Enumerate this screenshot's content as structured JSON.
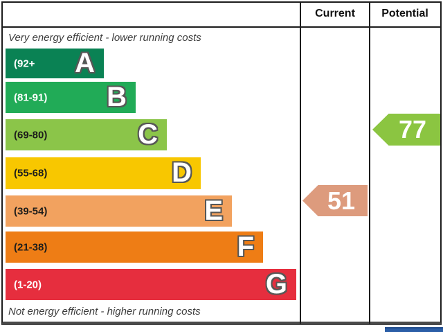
{
  "header": {
    "current_label": "Current",
    "potential_label": "Potential"
  },
  "captions": {
    "top": "Very energy efficient - lower running costs",
    "bottom": "Not energy efficient - higher running costs"
  },
  "chart_data": {
    "type": "bar",
    "title": "Energy efficiency rating chart (EPC style)",
    "orientation": "horizontal",
    "columns": [
      "Current",
      "Potential"
    ],
    "bands": [
      {
        "letter": "A",
        "range_label": "(92+",
        "range_min": 92,
        "range_max": 100,
        "color": "#0a8254",
        "label_color": "#ffffff"
      },
      {
        "letter": "B",
        "range_label": "(81-91)",
        "range_min": 81,
        "range_max": 91,
        "color": "#21ab57",
        "label_color": "#ffffff"
      },
      {
        "letter": "C",
        "range_label": "(69-80)",
        "range_min": 69,
        "range_max": 80,
        "color": "#8bc549",
        "label_color": "#1d1d1b"
      },
      {
        "letter": "D",
        "range_label": "(55-68)",
        "range_min": 55,
        "range_max": 68,
        "color": "#f8c700",
        "label_color": "#1d1d1b"
      },
      {
        "letter": "E",
        "range_label": "(39-54)",
        "range_min": 39,
        "range_max": 54,
        "color": "#f2a25f",
        "label_color": "#1d1d1b"
      },
      {
        "letter": "F",
        "range_label": "(21-38)",
        "range_min": 21,
        "range_max": 38,
        "color": "#ee7d15",
        "label_color": "#1d1d1b"
      },
      {
        "letter": "G",
        "range_label": "(1-20)",
        "range_min": 1,
        "range_max": 20,
        "color": "#e62e3e",
        "label_color": "#ffffff"
      }
    ],
    "current": {
      "value": "51",
      "band": "E",
      "arrow_color": "#dd9b7d"
    },
    "potential": {
      "value": "77",
      "band": "C",
      "arrow_color": "#8bc541"
    }
  },
  "footer": {
    "partial_blue_box_color": "#2b5ea7"
  }
}
